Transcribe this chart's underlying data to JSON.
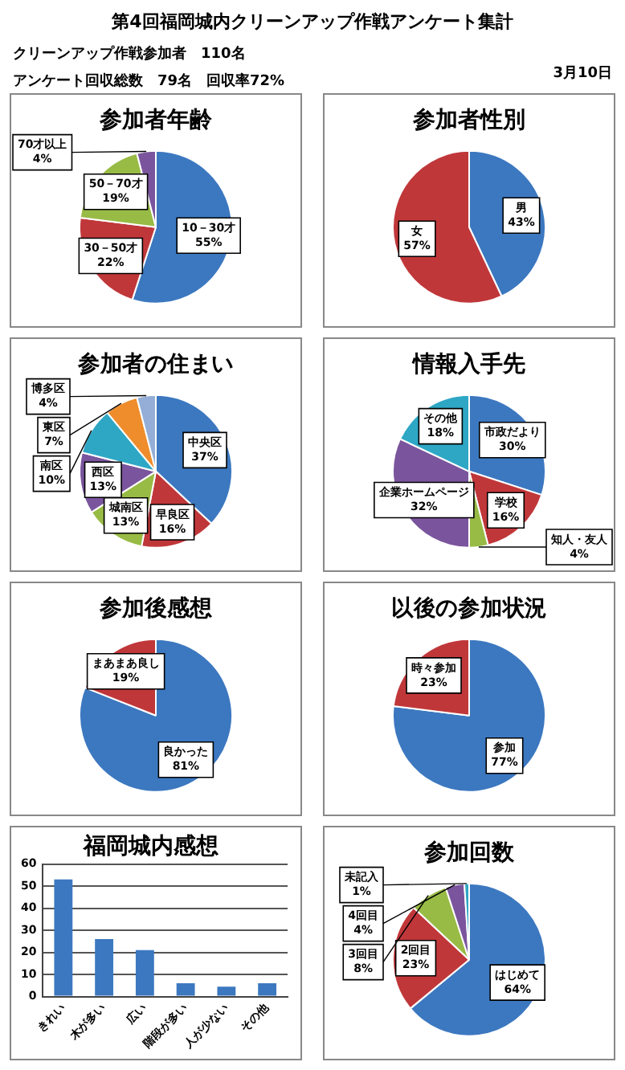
{
  "chart_data": [
    {
      "type": "other",
      "title": "第4回福岡城内クリーンアップ作戦アンケート集計",
      "annotations": [
        "クリーンアップ作戦参加者　110名",
        "アンケート回収総数　79名　回収率72%",
        "3月10日"
      ]
    },
    {
      "type": "pie",
      "title": "参加者年齢",
      "categories": [
        "10－30才",
        "30－50才",
        "50－70才",
        "70才以上"
      ],
      "values": [
        55,
        22,
        19,
        4
      ],
      "value_labels": [
        "55%",
        "22%",
        "19%",
        "4%"
      ],
      "colors": [
        "#3c78c0",
        "#c0373a",
        "#98bb45",
        "#7a559d"
      ]
    },
    {
      "type": "pie",
      "title": "参加者性別",
      "categories": [
        "男",
        "女"
      ],
      "values": [
        43,
        57
      ],
      "value_labels": [
        "43%",
        "57%"
      ],
      "colors": [
        "#3c78c0",
        "#c0373a"
      ]
    },
    {
      "type": "pie",
      "title": "参加者の住まい",
      "categories": [
        "中央区",
        "早良区",
        "城南区",
        "西区",
        "南区",
        "東区",
        "博多区"
      ],
      "values": [
        37,
        16,
        13,
        13,
        10,
        7,
        4
      ],
      "value_labels": [
        "37%",
        "16%",
        "13%",
        "13%",
        "10%",
        "7%",
        "4%"
      ],
      "colors": [
        "#3c78c0",
        "#c0373a",
        "#98bb45",
        "#7a559d",
        "#2ea7c5",
        "#ef8d2c",
        "#94aed7"
      ]
    },
    {
      "type": "pie",
      "title": "情報入手先",
      "categories": [
        "市政だより",
        "学校",
        "知人・友人",
        "企業ホームページ",
        "その他"
      ],
      "values": [
        30,
        16,
        4,
        32,
        18
      ],
      "value_labels": [
        "30%",
        "16%",
        "4%",
        "32%",
        "18%"
      ],
      "colors": [
        "#3c78c0",
        "#c0373a",
        "#98bb45",
        "#7a559d",
        "#2ea7c5"
      ]
    },
    {
      "type": "pie",
      "title": "参加後感想",
      "categories": [
        "良かった",
        "まあまあ良し"
      ],
      "values": [
        81,
        19
      ],
      "value_labels": [
        "81%",
        "19%"
      ],
      "colors": [
        "#3c78c0",
        "#c0373a"
      ]
    },
    {
      "type": "pie",
      "title": "以後の参加状況",
      "categories": [
        "参加",
        "時々参加"
      ],
      "values": [
        77,
        23
      ],
      "value_labels": [
        "77%",
        "23%"
      ],
      "colors": [
        "#3c78c0",
        "#c0373a"
      ]
    },
    {
      "type": "bar",
      "title": "福岡城内感想",
      "categories": [
        "きれい",
        "木が多い",
        "広い",
        "階段が多い",
        "人が少ない",
        "その他"
      ],
      "values": [
        53,
        26,
        21,
        6,
        4.5,
        6
      ],
      "color": "#3c78c0",
      "ylim": [
        0,
        60
      ],
      "yticks": [
        0,
        10,
        20,
        30,
        40,
        50,
        60
      ],
      "grid": "y"
    },
    {
      "type": "pie",
      "title": "参加回数",
      "categories": [
        "はじめて",
        "2回目",
        "3回目",
        "4回目",
        "未記入"
      ],
      "values": [
        64,
        23,
        8,
        4,
        1
      ],
      "value_labels": [
        "64%",
        "23%",
        "8%",
        "4%",
        "1%"
      ],
      "colors": [
        "#3c78c0",
        "#c0373a",
        "#98bb45",
        "#7a559d",
        "#2ea7c5"
      ]
    }
  ]
}
